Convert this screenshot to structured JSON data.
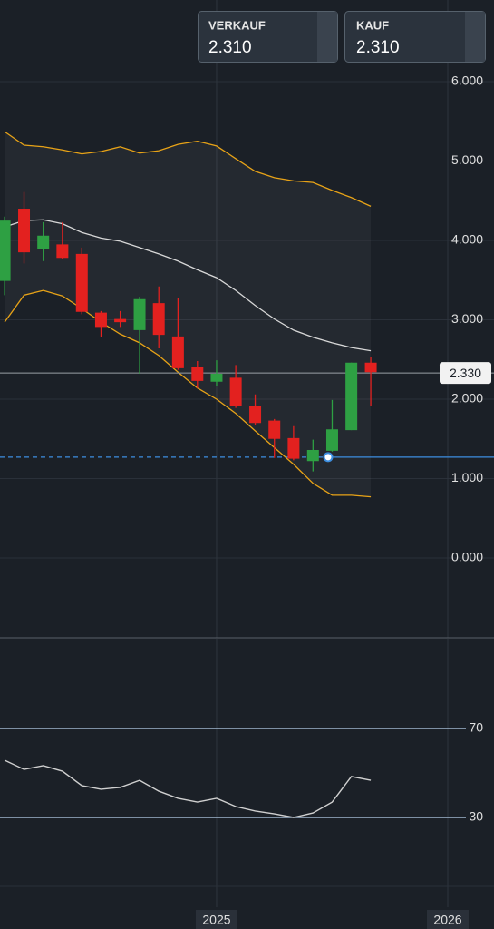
{
  "header": {
    "sell": {
      "label": "VERKAUF",
      "price": "2.310"
    },
    "buy": {
      "label": "KAUF",
      "price": "2.310"
    }
  },
  "chart_data": [
    {
      "type": "candlestick",
      "x": [
        2024.083,
        2024.167,
        2024.25,
        2024.333,
        2024.417,
        2024.5,
        2024.583,
        2024.667,
        2024.75,
        2024.833,
        2024.917,
        2025,
        2025.083,
        2025.167,
        2025.25,
        2025.333,
        2025.417,
        2025.5,
        2025.583,
        2025.667
      ],
      "open": [
        3.49,
        4.4,
        3.89,
        3.95,
        3.83,
        3.09,
        3.01,
        2.87,
        3.21,
        2.79,
        2.4,
        2.22,
        2.27,
        1.91,
        1.73,
        1.51,
        1.22,
        1.35,
        1.61,
        2.46
      ],
      "high": [
        4.3,
        4.61,
        4.23,
        4.23,
        3.91,
        3.11,
        3.11,
        3.29,
        3.42,
        3.28,
        2.48,
        2.49,
        2.43,
        2.06,
        1.75,
        1.66,
        1.49,
        1.99,
        2.46,
        2.53
      ],
      "low": [
        3.31,
        3.71,
        3.74,
        3.76,
        3.07,
        2.78,
        2.91,
        2.32,
        2.64,
        2.37,
        2.14,
        2.17,
        1.89,
        1.68,
        1.26,
        1.23,
        1.09,
        1.34,
        1.61,
        1.92
      ],
      "close": [
        4.25,
        3.85,
        4.06,
        3.78,
        3.1,
        2.91,
        2.97,
        3.26,
        2.81,
        2.39,
        2.23,
        2.32,
        1.91,
        1.7,
        1.5,
        1.25,
        1.36,
        1.62,
        2.46,
        2.34
      ],
      "up_color": "#2ea043",
      "down_color": "#e3211f",
      "bands": {
        "color": "#e8a317",
        "middle_color": "#d8d8d8",
        "upper": [
          5.37,
          5.2,
          5.18,
          5.14,
          5.09,
          5.12,
          5.18,
          5.1,
          5.13,
          5.21,
          5.25,
          5.19,
          5.03,
          4.87,
          4.79,
          4.75,
          4.73,
          4.63,
          4.54,
          4.43
        ],
        "middle": [
          4.17,
          4.25,
          4.26,
          4.21,
          4.1,
          4.03,
          3.99,
          3.91,
          3.83,
          3.74,
          3.63,
          3.53,
          3.37,
          3.18,
          3.01,
          2.87,
          2.78,
          2.71,
          2.65,
          2.61
        ],
        "lower": [
          2.97,
          3.31,
          3.37,
          3.3,
          3.14,
          2.97,
          2.82,
          2.71,
          2.55,
          2.34,
          2.14,
          2.0,
          1.82,
          1.6,
          1.39,
          1.18,
          0.94,
          0.79,
          0.79,
          0.77
        ]
      },
      "last_price": {
        "value": 2.33,
        "label": "2.330"
      },
      "order_line": 1.27,
      "xlim": [
        2024.063,
        2026.2
      ],
      "xticks": [
        2025,
        2026
      ],
      "ylim": [
        -1.006,
        7.029
      ],
      "yticks": [
        {
          "value": 0,
          "label": "0.000"
        },
        {
          "value": 1,
          "label": "1.000"
        },
        {
          "value": 2,
          "label": "2.000"
        },
        {
          "value": 3,
          "label": "3.000"
        },
        {
          "value": 4,
          "label": "4.000"
        },
        {
          "value": 5,
          "label": "5.000"
        },
        {
          "value": 6,
          "label": "6.000"
        }
      ],
      "grid": true
    },
    {
      "type": "line",
      "x": [
        2024.083,
        2024.167,
        2024.25,
        2024.333,
        2024.417,
        2024.5,
        2024.583,
        2024.667,
        2024.75,
        2024.833,
        2024.917,
        2025,
        2025.083,
        2025.167,
        2025.25,
        2025.333,
        2025.417,
        2025.5,
        2025.583,
        2025.667
      ],
      "values": [
        55.7,
        51.6,
        53.3,
        50.8,
        44.3,
        42.7,
        43.5,
        46.7,
        41.8,
        38.6,
        36.9,
        38.6,
        34.9,
        32.9,
        31.6,
        30,
        32.0,
        36.9,
        48.4,
        46.7
      ],
      "color": "#d0d0d0",
      "level_color": "#b9d3ee",
      "xlim": [
        2024.063,
        2026.2
      ],
      "xticks": [
        2025,
        2026
      ],
      "ylim": [
        0,
        100
      ],
      "yticks": [
        30,
        70
      ]
    }
  ]
}
